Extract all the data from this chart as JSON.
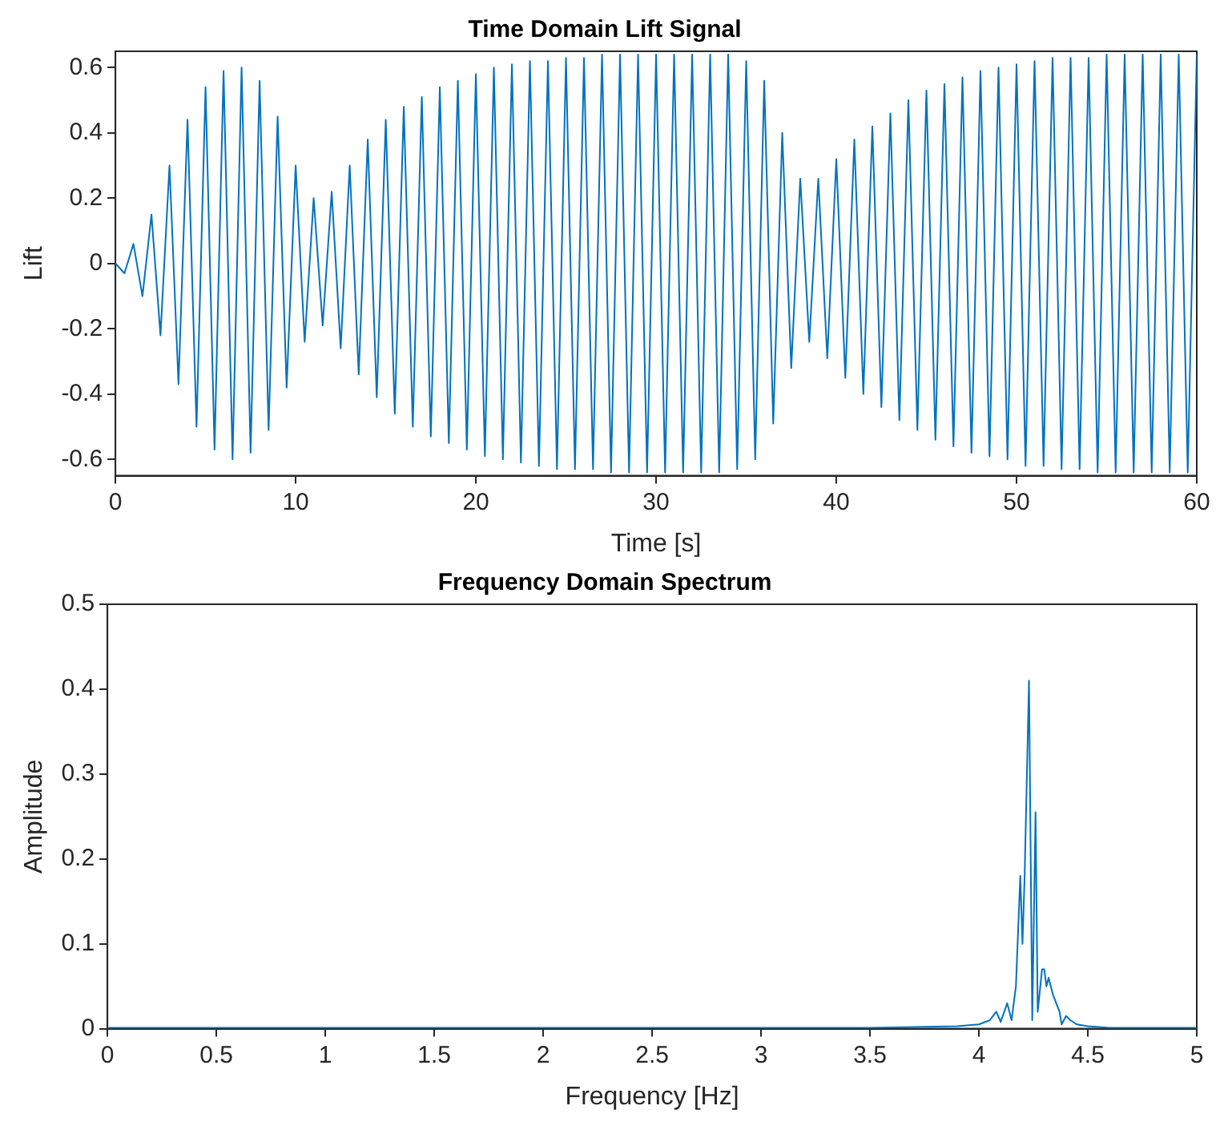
{
  "chart_data": [
    {
      "type": "line",
      "title": "Time Domain Lift Signal",
      "xlabel": "Time [s]",
      "ylabel": "Lift",
      "xlim": [
        0,
        60
      ],
      "xticks": [
        0,
        10,
        20,
        30,
        40,
        50,
        60
      ],
      "ylim": [
        -0.65,
        0.65
      ],
      "yticks": [
        -0.6,
        -0.4,
        -0.2,
        0,
        0.2,
        0.4,
        0.6
      ],
      "grid": false,
      "legend": false,
      "marker": "none",
      "line_style": "solid",
      "series": [
        {
          "color": "#0072bd",
          "x": [
            0,
            0.5,
            1,
            1.5,
            2,
            2.5,
            3,
            3.5,
            4,
            4.5,
            5,
            5.5,
            6,
            6.5,
            7,
            7.5,
            8,
            8.5,
            9,
            9.5,
            10,
            10.5,
            11,
            11.5,
            12,
            12.5,
            13,
            13.5,
            14,
            14.5,
            15,
            15.5,
            16,
            16.5,
            17,
            17.5,
            18,
            18.5,
            19,
            19.5,
            20,
            20.5,
            21,
            21.5,
            22,
            22.5,
            23,
            23.5,
            24,
            24.5,
            25,
            25.5,
            26,
            26.5,
            27,
            27.5,
            28,
            28.5,
            29,
            29.5,
            30,
            30.5,
            31,
            31.5,
            32,
            32.5,
            33,
            33.5,
            34,
            34.5,
            35,
            35.5,
            36,
            36.5,
            37,
            37.5,
            38,
            38.5,
            39,
            39.5,
            40,
            40.5,
            41,
            41.5,
            42,
            42.5,
            43,
            43.5,
            44,
            44.5,
            45,
            45.5,
            46,
            46.5,
            47,
            47.5,
            48,
            48.5,
            49,
            49.5,
            50,
            50.5,
            51,
            51.5,
            52,
            52.5,
            53,
            53.5,
            54,
            54.5,
            55,
            55.5,
            56,
            56.5,
            57,
            57.5,
            58,
            58.5,
            59,
            59.5,
            60
          ],
          "values": [
            0,
            -0.03,
            0.06,
            -0.1,
            0.15,
            -0.22,
            0.3,
            -0.37,
            0.44,
            -0.5,
            0.54,
            -0.57,
            0.59,
            -0.6,
            0.6,
            -0.58,
            0.56,
            -0.51,
            0.45,
            -0.38,
            0.3,
            -0.24,
            0.2,
            -0.19,
            0.22,
            -0.26,
            0.3,
            -0.34,
            0.38,
            -0.41,
            0.44,
            -0.46,
            0.48,
            -0.5,
            0.51,
            -0.53,
            0.54,
            -0.55,
            0.56,
            -0.57,
            0.58,
            -0.59,
            0.6,
            -0.6,
            0.61,
            -0.61,
            0.62,
            -0.62,
            0.62,
            -0.63,
            0.63,
            -0.63,
            0.63,
            -0.63,
            0.64,
            -0.64,
            0.64,
            -0.64,
            0.64,
            -0.64,
            0.64,
            -0.64,
            0.64,
            -0.64,
            0.64,
            -0.64,
            0.64,
            -0.64,
            0.64,
            -0.63,
            0.62,
            -0.6,
            0.56,
            -0.49,
            0.4,
            -0.32,
            0.26,
            -0.24,
            0.26,
            -0.29,
            0.32,
            -0.35,
            0.38,
            -0.4,
            0.42,
            -0.44,
            0.46,
            -0.48,
            0.5,
            -0.51,
            0.53,
            -0.54,
            0.55,
            -0.56,
            0.57,
            -0.58,
            0.59,
            -0.59,
            0.6,
            -0.6,
            0.61,
            -0.62,
            0.62,
            -0.62,
            0.63,
            -0.63,
            0.63,
            -0.63,
            0.63,
            -0.64,
            0.64,
            -0.64,
            0.64,
            -0.64,
            0.64,
            -0.64,
            0.64,
            -0.64,
            0.64,
            -0.64,
            0.64
          ]
        }
      ]
    },
    {
      "type": "line",
      "title": "Frequency Domain Spectrum",
      "xlabel": "Frequency [Hz]",
      "ylabel": "Amplitude",
      "xlim": [
        0,
        5
      ],
      "xticks": [
        0,
        0.5,
        1,
        1.5,
        2,
        2.5,
        3,
        3.5,
        4,
        4.5,
        5
      ],
      "ylim": [
        0,
        0.5
      ],
      "yticks": [
        0,
        0.1,
        0.2,
        0.3,
        0.4,
        0.5
      ],
      "grid": false,
      "legend": false,
      "marker": "none",
      "line_style": "solid",
      "series": [
        {
          "color": "#0072bd",
          "x": [
            0,
            0.5,
            1,
            1.5,
            2,
            2.5,
            3,
            3.5,
            3.9,
            4.0,
            4.05,
            4.08,
            4.1,
            4.13,
            4.15,
            4.17,
            4.19,
            4.2,
            4.21,
            4.23,
            4.245,
            4.26,
            4.27,
            4.29,
            4.3,
            4.31,
            4.32,
            4.34,
            4.37,
            4.38,
            4.4,
            4.42,
            4.45,
            4.5,
            4.6,
            5
          ],
          "values": [
            0.001,
            0.001,
            0.001,
            0.001,
            0.001,
            0.001,
            0.001,
            0.001,
            0.003,
            0.005,
            0.01,
            0.02,
            0.008,
            0.03,
            0.01,
            0.05,
            0.18,
            0.1,
            0.18,
            0.41,
            0.01,
            0.255,
            0.02,
            0.07,
            0.07,
            0.05,
            0.06,
            0.04,
            0.02,
            0.005,
            0.015,
            0.01,
            0.005,
            0.003,
            0.001,
            0.001
          ]
        }
      ]
    }
  ]
}
